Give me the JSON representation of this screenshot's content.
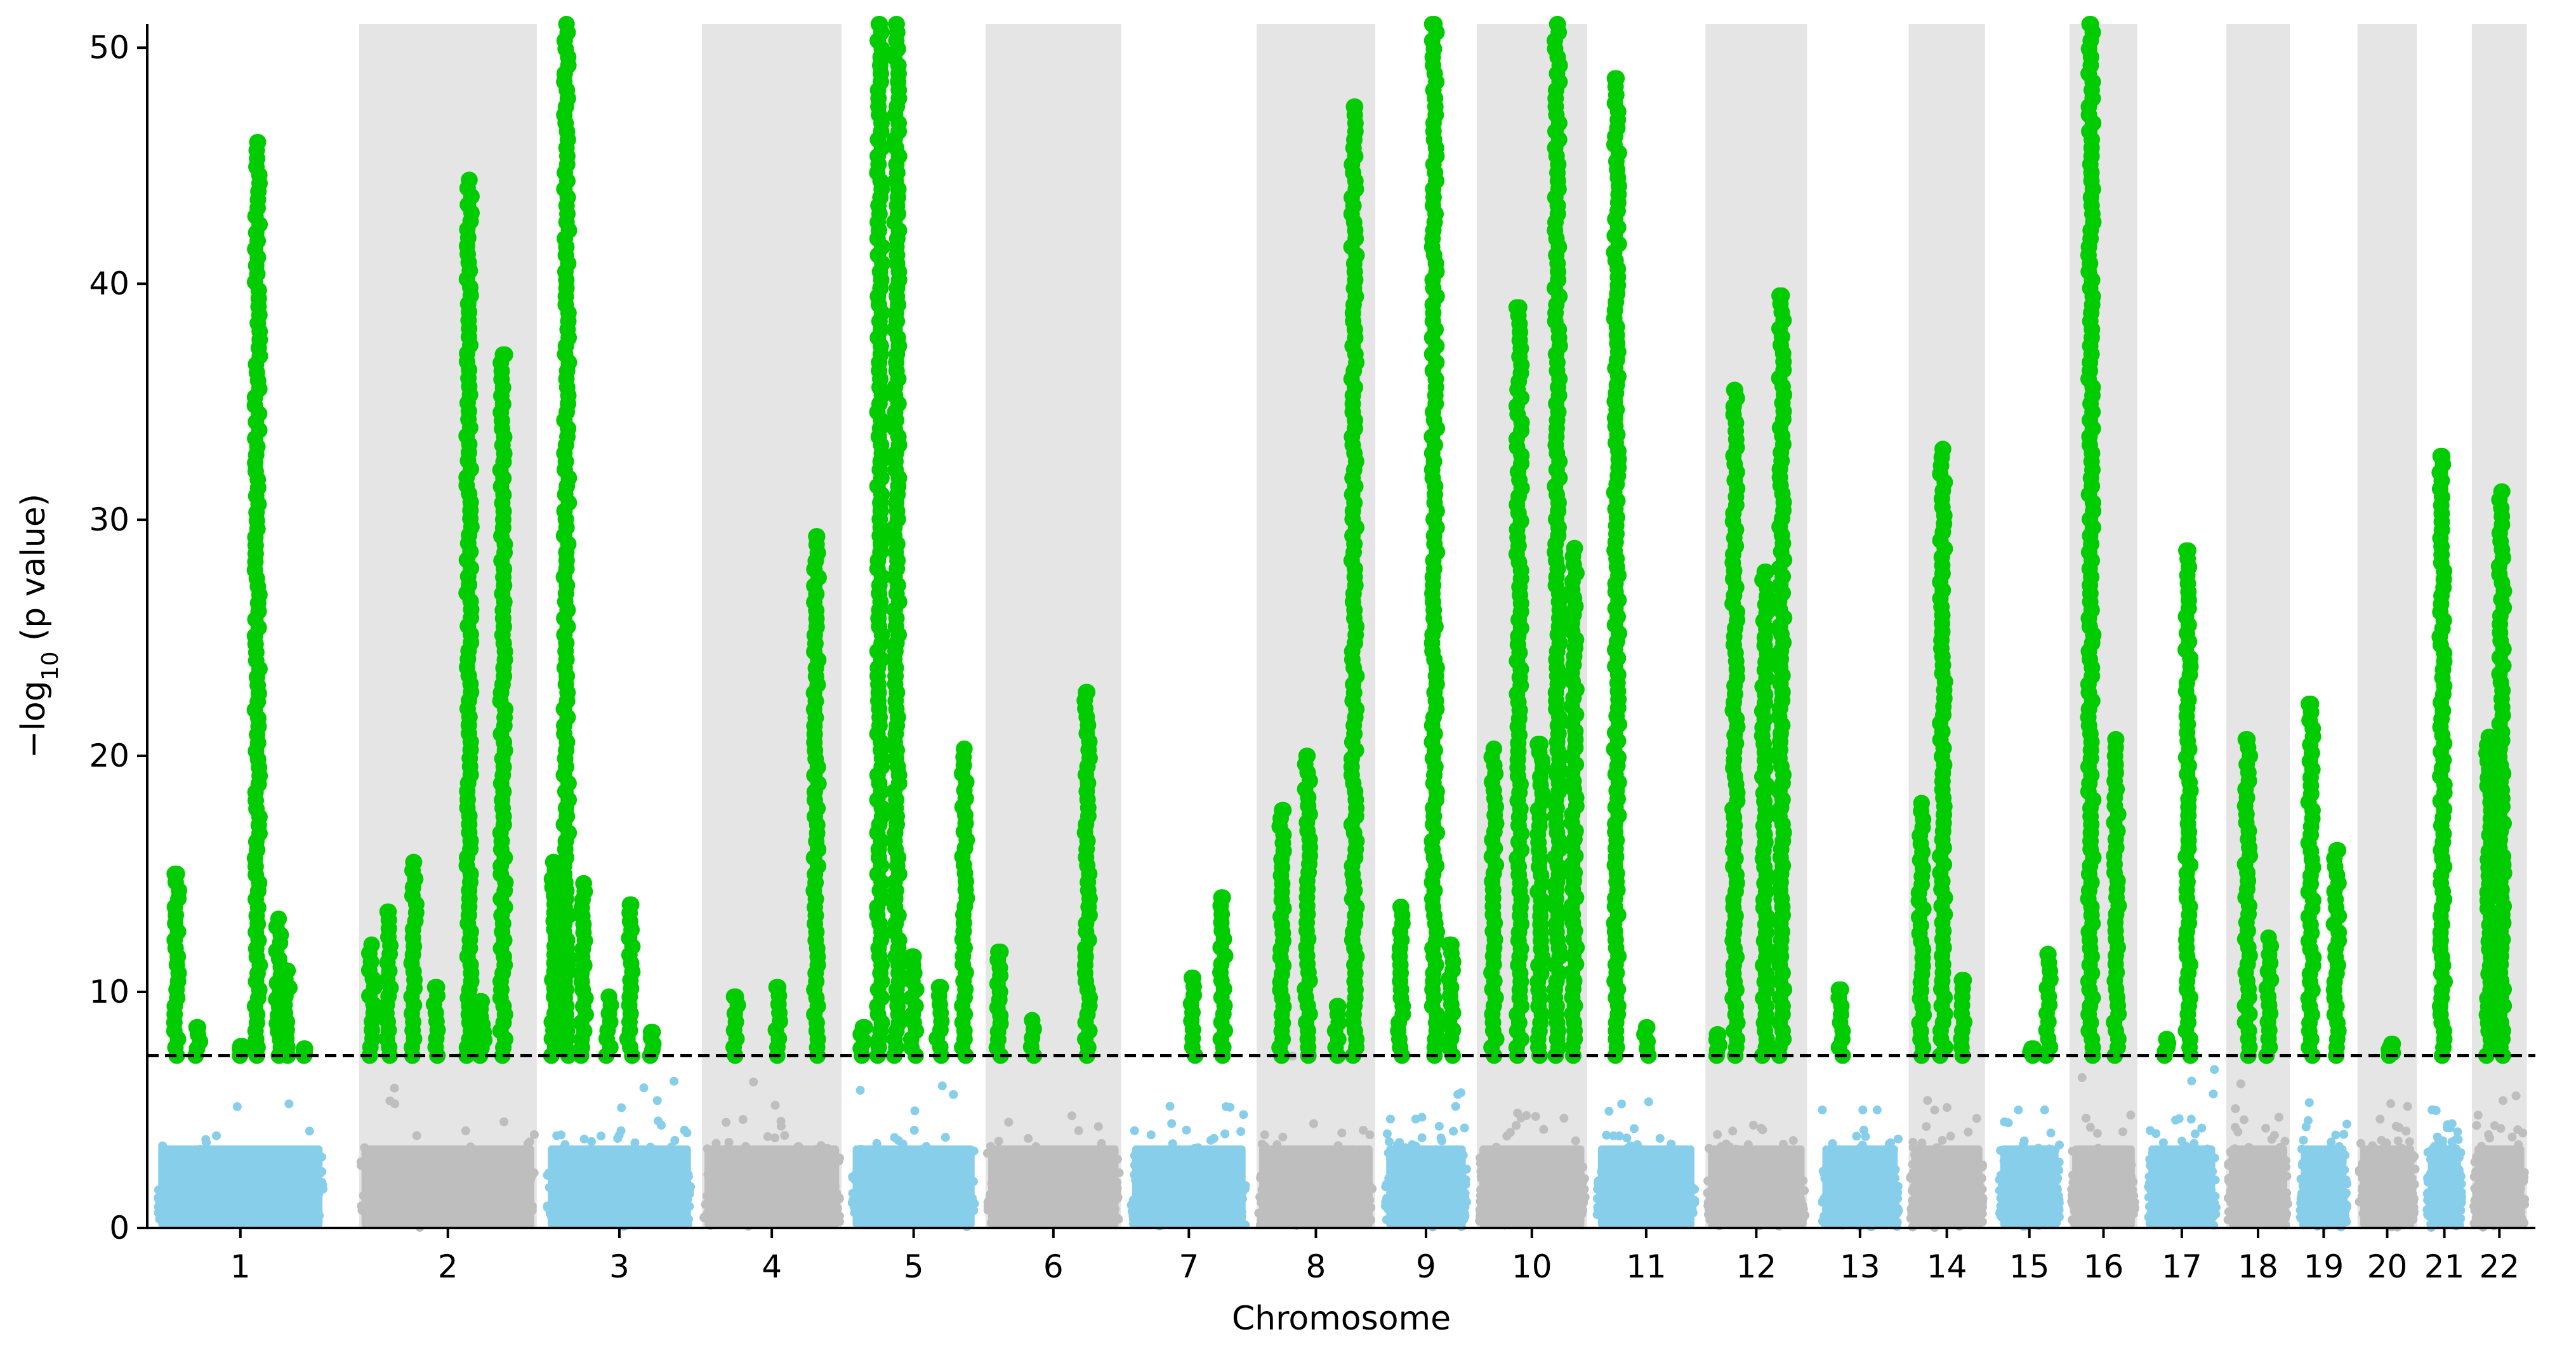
{
  "chart_data": {
    "type": "scatter",
    "subtype": "manhattan",
    "xlabel": "Chromosome",
    "ylabel_prefix": "−log",
    "ylabel_subscript": "10",
    "ylabel_suffix": " (p value)",
    "ylim": [
      0,
      51
    ],
    "yticks": [
      0,
      10,
      20,
      30,
      40,
      50
    ],
    "threshold": 7.3,
    "threshold_style": "dashed",
    "colors": {
      "odd_chromosome": "#87ceeb",
      "even_chromosome": "#bebebe",
      "significant": "#00cc00",
      "band_shade": "#e5e5e5",
      "threshold_line": "#000000"
    },
    "shaded_bands": "even chromosomes",
    "chromosomes": [
      {
        "label": "1",
        "band": [
          0.5,
          2.5
        ],
        "bg_max": 7.3,
        "peaks": [
          [
            0.75,
            15.0
          ],
          [
            1.0,
            8.5
          ],
          [
            1.5,
            7.7
          ],
          [
            1.7,
            46.0
          ],
          [
            1.95,
            13.1
          ],
          [
            2.05,
            10.9
          ],
          [
            2.25,
            7.6
          ]
        ]
      },
      {
        "label": "2",
        "band": [
          2.9,
          5.0
        ],
        "bg_max": 7.2,
        "peaks": [
          [
            3.05,
            12.0
          ],
          [
            3.25,
            13.4
          ],
          [
            3.55,
            15.5
          ],
          [
            3.8,
            10.2
          ],
          [
            4.2,
            44.4
          ],
          [
            4.35,
            9.6
          ],
          [
            4.6,
            37.0
          ]
        ]
      },
      {
        "label": "3",
        "band": [
          5.1,
          6.85
        ],
        "bg_max": 7.3,
        "peaks": [
          [
            5.2,
            15.5
          ],
          [
            5.35,
            51.0
          ],
          [
            5.55,
            14.6
          ],
          [
            5.85,
            9.8
          ],
          [
            6.1,
            13.7
          ],
          [
            6.35,
            8.3
          ]
        ]
      },
      {
        "label": "4",
        "band": [
          6.95,
          8.6
        ],
        "bg_max": 7.0,
        "peaks": [
          [
            7.35,
            9.8
          ],
          [
            7.85,
            10.2
          ],
          [
            8.3,
            29.3
          ]
        ]
      },
      {
        "label": "5",
        "band": [
          8.7,
          10.2
        ],
        "bg_max": 7.3,
        "peaks": [
          [
            8.85,
            8.5
          ],
          [
            9.05,
            51.0
          ],
          [
            9.25,
            51.0
          ],
          [
            9.45,
            11.5
          ],
          [
            9.75,
            10.2
          ],
          [
            10.05,
            20.3
          ]
        ]
      },
      {
        "label": "6",
        "band": [
          10.3,
          11.9
        ],
        "bg_max": 7.3,
        "peaks": [
          [
            10.45,
            11.7
          ],
          [
            10.85,
            8.8
          ],
          [
            11.5,
            22.7
          ]
        ]
      },
      {
        "label": "7",
        "band": [
          12.0,
          13.4
        ],
        "bg_max": 6.2,
        "peaks": [
          [
            12.75,
            10.6
          ],
          [
            13.1,
            14.0
          ]
        ]
      },
      {
        "label": "8",
        "band": [
          13.5,
          14.9
        ],
        "bg_max": 7.3,
        "peaks": [
          [
            13.8,
            17.7
          ],
          [
            14.1,
            20.0
          ],
          [
            14.45,
            9.4
          ],
          [
            14.65,
            47.5
          ]
        ]
      },
      {
        "label": "9",
        "band": [
          15.0,
          16.0
        ],
        "bg_max": 7.0,
        "peaks": [
          [
            15.2,
            13.6
          ],
          [
            15.6,
            51.0
          ],
          [
            15.8,
            12.0
          ]
        ]
      },
      {
        "label": "10",
        "band": [
          16.1,
          17.4
        ],
        "bg_max": 7.3,
        "peaks": [
          [
            16.3,
            20.3
          ],
          [
            16.6,
            39.0
          ],
          [
            16.85,
            20.5
          ],
          [
            17.05,
            51.0
          ],
          [
            17.25,
            28.8
          ]
        ]
      },
      {
        "label": "11",
        "band": [
          17.5,
          18.7
        ],
        "bg_max": 6.9,
        "peaks": [
          [
            17.75,
            48.7
          ],
          [
            18.1,
            8.5
          ]
        ]
      },
      {
        "label": "12",
        "band": [
          18.8,
          20.0
        ],
        "bg_max": 7.3,
        "peaks": [
          [
            18.95,
            8.2
          ],
          [
            19.15,
            35.5
          ],
          [
            19.5,
            27.8
          ],
          [
            19.7,
            39.5
          ]
        ]
      },
      {
        "label": "13",
        "band": [
          20.15,
          21.1
        ],
        "bg_max": 5.0,
        "peaks": [
          [
            20.4,
            10.1
          ]
        ]
      },
      {
        "label": "14",
        "band": [
          21.2,
          22.1
        ],
        "bg_max": 7.3,
        "peaks": [
          [
            21.35,
            18.0
          ],
          [
            21.6,
            33.0
          ],
          [
            21.85,
            10.5
          ]
        ]
      },
      {
        "label": "15",
        "band": [
          22.25,
          23.0
        ],
        "bg_max": 5.0,
        "peaks": [
          [
            22.65,
            7.6
          ],
          [
            22.85,
            11.6
          ]
        ]
      },
      {
        "label": "16",
        "band": [
          23.1,
          23.9
        ],
        "bg_max": 7.3,
        "peaks": [
          [
            23.35,
            51.0
          ],
          [
            23.65,
            20.7
          ]
        ]
      },
      {
        "label": "17",
        "band": [
          24.0,
          24.85
        ],
        "bg_max": 7.3,
        "peaks": [
          [
            24.25,
            8.0
          ],
          [
            24.5,
            28.7
          ]
        ]
      },
      {
        "label": "18",
        "band": [
          24.95,
          25.7
        ],
        "bg_max": 7.3,
        "peaks": [
          [
            25.2,
            20.7
          ],
          [
            25.45,
            12.3
          ]
        ]
      },
      {
        "label": "19",
        "band": [
          25.8,
          26.4
        ],
        "bg_max": 7.0,
        "peaks": [
          [
            25.95,
            22.2
          ],
          [
            26.25,
            16.0
          ]
        ]
      },
      {
        "label": "20",
        "band": [
          26.5,
          27.2
        ],
        "bg_max": 7.3,
        "peaks": [
          [
            26.9,
            7.8
          ]
        ]
      },
      {
        "label": "21",
        "band": [
          27.3,
          27.75
        ],
        "bg_max": 5.0,
        "peaks": [
          [
            27.5,
            32.7
          ]
        ]
      },
      {
        "label": "22",
        "band": [
          27.85,
          28.5
        ],
        "bg_max": 7.3,
        "peaks": [
          [
            28.05,
            20.8
          ],
          [
            28.2,
            31.2
          ]
        ]
      }
    ]
  }
}
